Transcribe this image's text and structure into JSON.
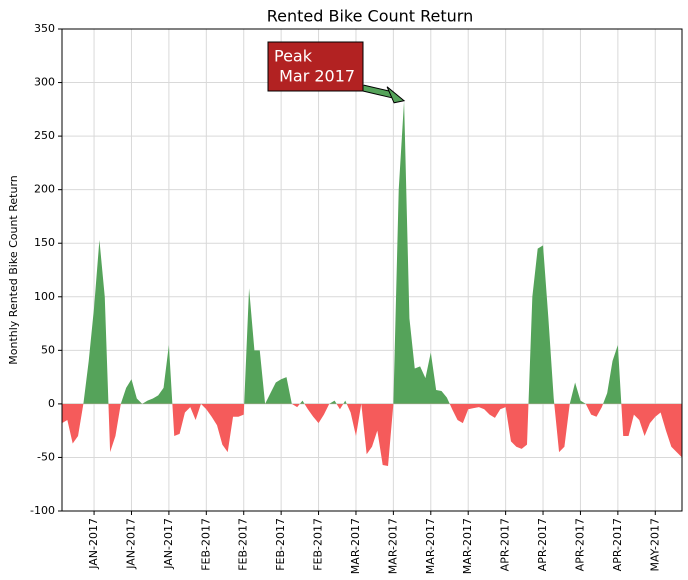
{
  "chart_data": {
    "type": "area",
    "title": "Rented Bike Count Return",
    "ylabel": "Monthly Rented Bike Count Return",
    "x": [
      0,
      1,
      2,
      3,
      4,
      5,
      6,
      7,
      8,
      9,
      10,
      11,
      12,
      13,
      14,
      15,
      16,
      17,
      18,
      19,
      20,
      21,
      22,
      23,
      24,
      25,
      26,
      27,
      28,
      29,
      30,
      31,
      32,
      33,
      34,
      35,
      36,
      37,
      38,
      39,
      40,
      41,
      42,
      43,
      44,
      45,
      46,
      47,
      48,
      49,
      50,
      51,
      52,
      53,
      54,
      55,
      56,
      57,
      58,
      59,
      60,
      61,
      62,
      63,
      64,
      65,
      66,
      67,
      68,
      69,
      70,
      71,
      72,
      73,
      74,
      75,
      76,
      77,
      78,
      79,
      80,
      81,
      82,
      83,
      84,
      85,
      86,
      87,
      88,
      89,
      90,
      91,
      92,
      93,
      94,
      95,
      96,
      97,
      98,
      99,
      100,
      101,
      102,
      103,
      104,
      105,
      106,
      107,
      108,
      109,
      110,
      111,
      112,
      113,
      114,
      115,
      116
    ],
    "values": [
      -18,
      -15,
      -37,
      -30,
      0,
      40,
      90,
      153,
      100,
      -45,
      -30,
      0,
      15,
      23,
      5,
      0,
      3,
      5,
      8,
      15,
      55,
      -30,
      -28,
      -8,
      -3,
      -15,
      0,
      -5,
      -12,
      -20,
      -38,
      -45,
      -12,
      -12,
      -10,
      108,
      50,
      50,
      0,
      10,
      20,
      23,
      25,
      0,
      -3,
      3,
      -5,
      -12,
      -18,
      -10,
      0,
      3,
      -5,
      3,
      -8,
      -30,
      0,
      -47,
      -40,
      -25,
      -57,
      -58,
      0,
      200,
      283,
      80,
      33,
      35,
      24,
      48,
      13,
      12,
      6,
      -5,
      -15,
      -18,
      -5,
      -4,
      -3,
      -5,
      -10,
      -13,
      -5,
      -3,
      -35,
      -40,
      -42,
      -38,
      100,
      145,
      148,
      80,
      5,
      -45,
      -40,
      0,
      20,
      3,
      0,
      -10,
      -12,
      -3,
      10,
      40,
      55,
      -30,
      -30,
      -10,
      -15,
      -30,
      -18,
      -12,
      -8,
      -25,
      -40,
      -45,
      -50
    ],
    "positive_color": "#55a35a",
    "negative_color": "#f55b5b",
    "xlim": [
      0,
      116
    ],
    "ylim": [
      -100,
      350
    ],
    "yticks": [
      -100,
      -50,
      0,
      50,
      100,
      150,
      200,
      250,
      300,
      350
    ],
    "xticks": [
      {
        "value": 6,
        "label": "JAN-2017"
      },
      {
        "value": 13,
        "label": "JAN-2017"
      },
      {
        "value": 20,
        "label": "JAN-2017"
      },
      {
        "value": 27,
        "label": "FEB-2017"
      },
      {
        "value": 34,
        "label": "FEB-2017"
      },
      {
        "value": 41,
        "label": "FEB-2017"
      },
      {
        "value": 48,
        "label": "FEB-2017"
      },
      {
        "value": 55,
        "label": "MAR-2017"
      },
      {
        "value": 62,
        "label": "MAR-2017"
      },
      {
        "value": 69,
        "label": "MAR-2017"
      },
      {
        "value": 76,
        "label": "MAR-2017"
      },
      {
        "value": 83,
        "label": "APR-2017"
      },
      {
        "value": 90,
        "label": "APR-2017"
      },
      {
        "value": 97,
        "label": "APR-2017"
      },
      {
        "value": 104,
        "label": "APR-2017"
      },
      {
        "value": 111,
        "label": "MAY-2017"
      }
    ],
    "grid": true,
    "annotation": {
      "lines": [
        "Peak",
        " Mar 2017"
      ],
      "x": 64,
      "y": 283,
      "color": "#b22222",
      "arrow_color": "#55a35a"
    }
  }
}
